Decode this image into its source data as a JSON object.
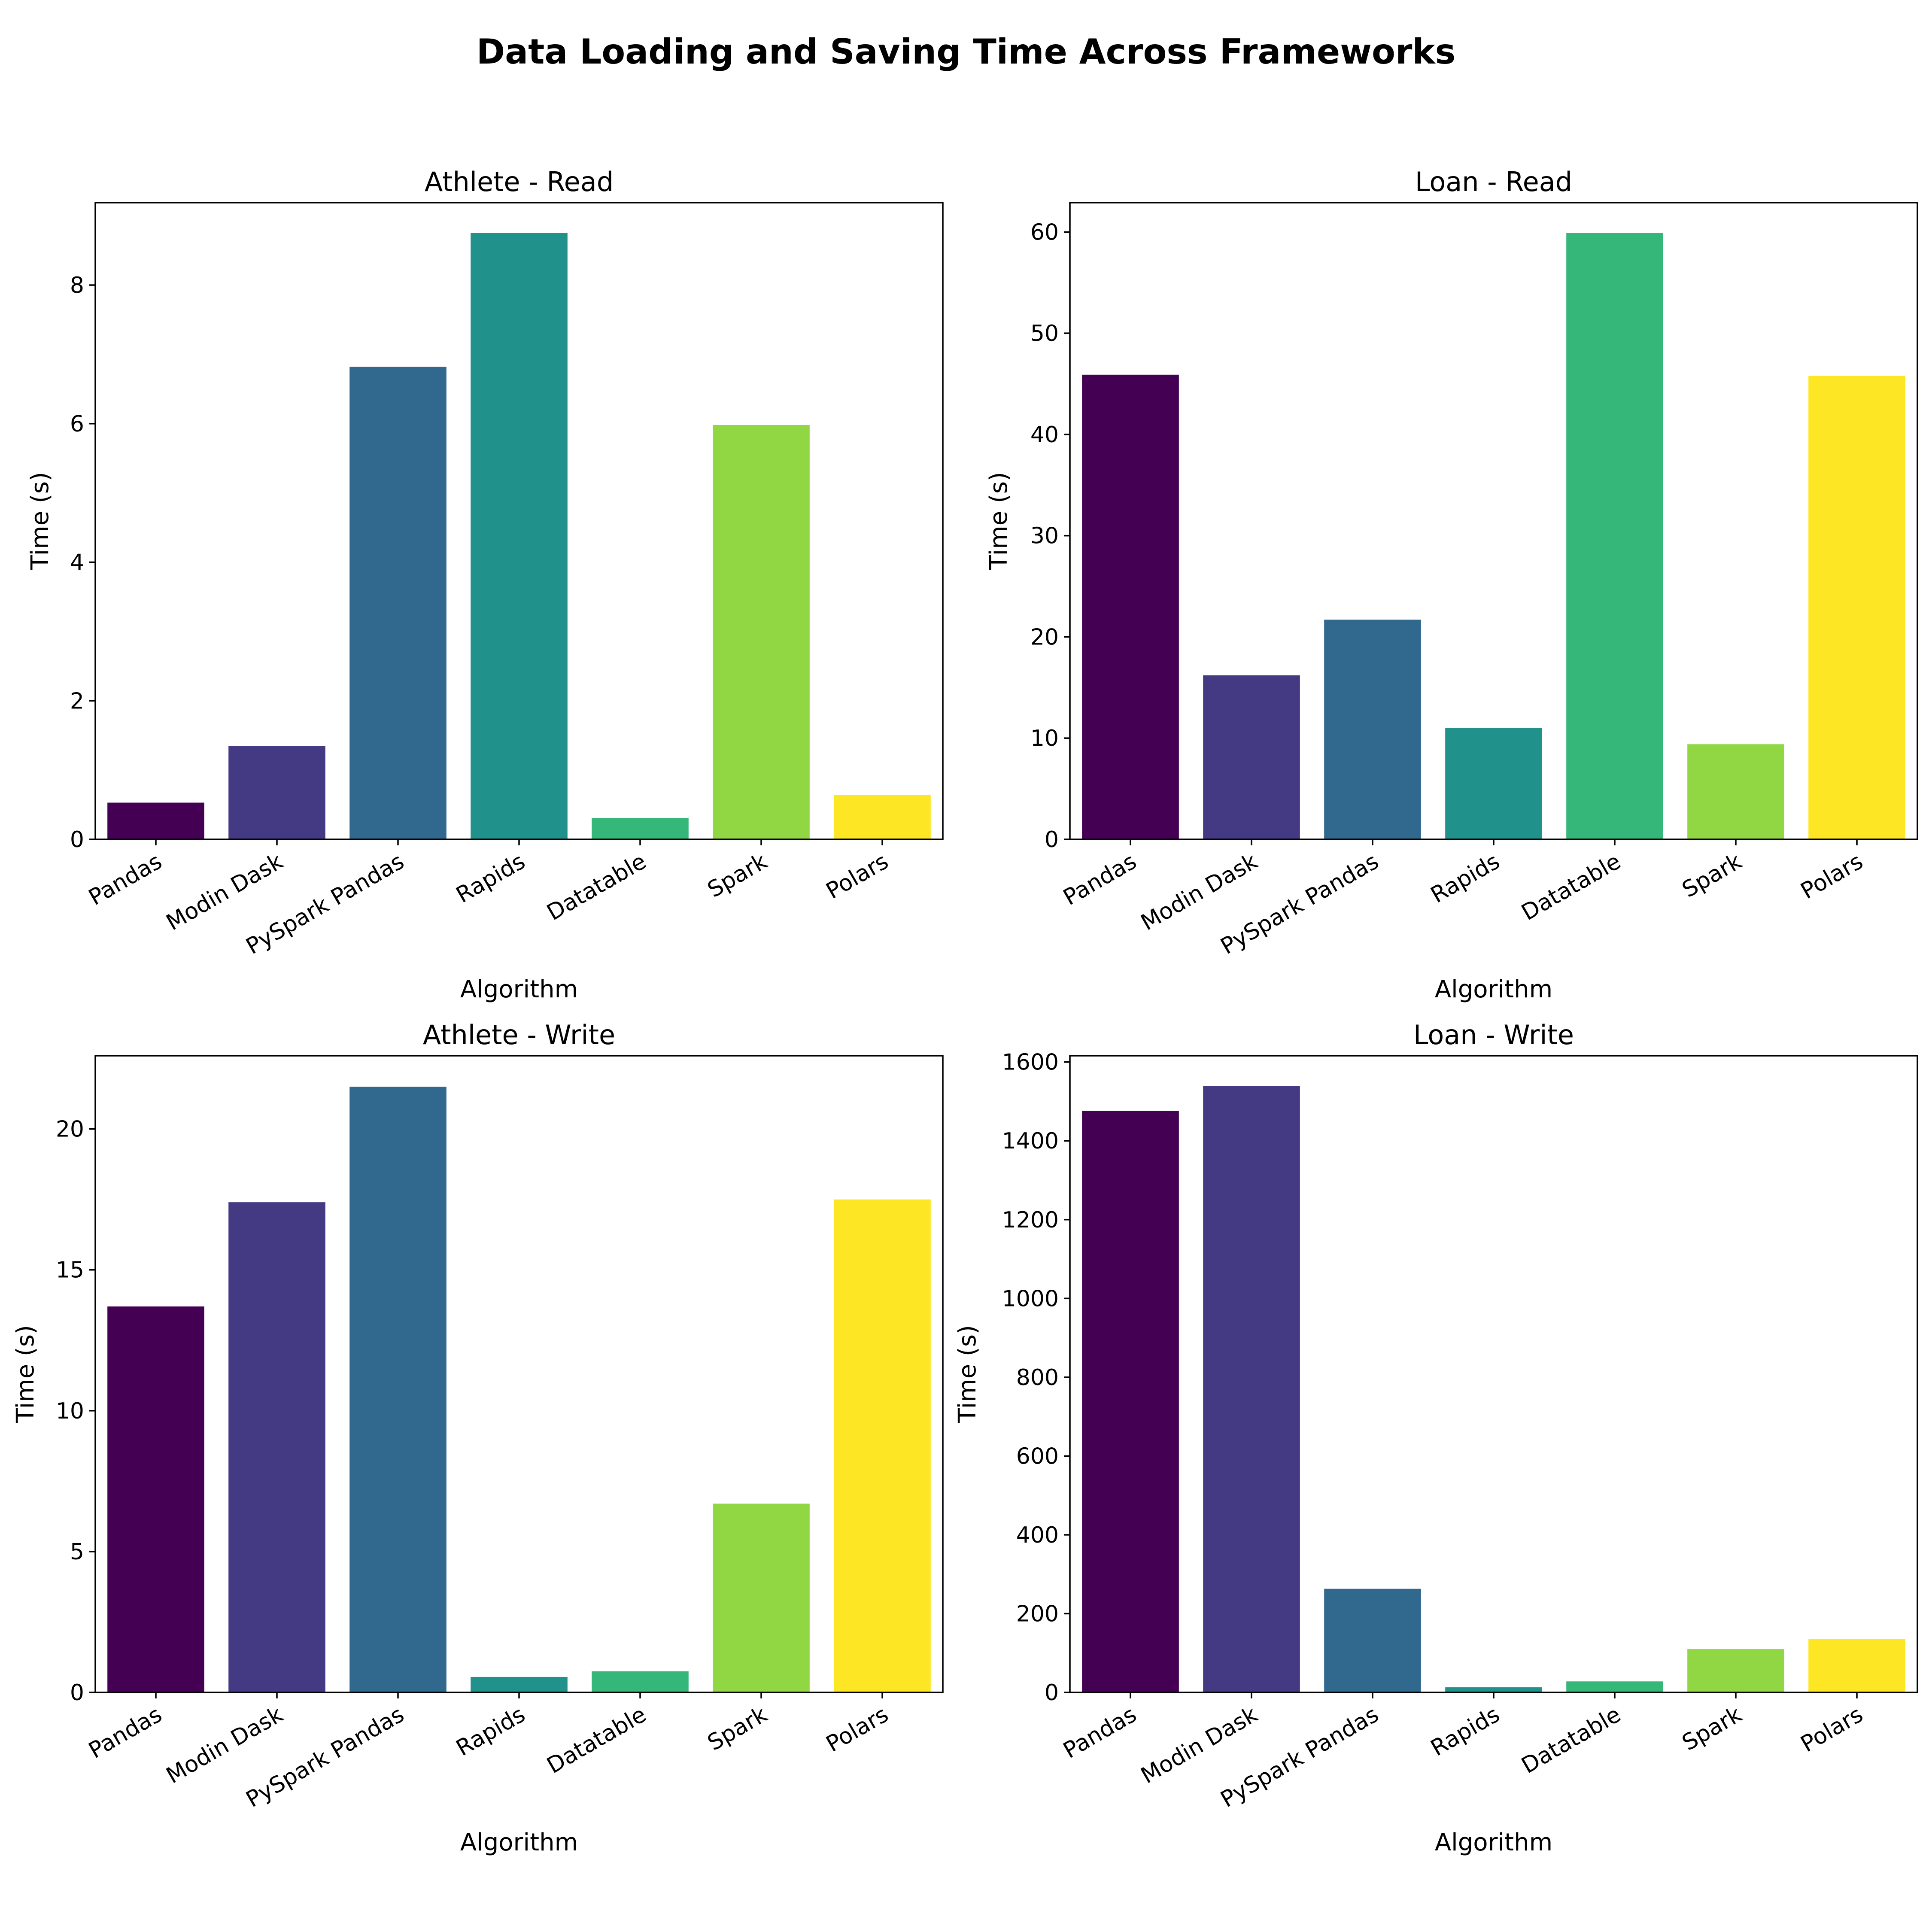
{
  "figure": {
    "title": "Data Loading and Saving Time Across Frameworks",
    "background": "#ffffff"
  },
  "chart_data": [
    {
      "type": "bar",
      "title": "Athlete - Read",
      "xlabel": "Algorithm",
      "ylabel": "Time (s)",
      "categories": [
        "Pandas",
        "Modin Dask",
        "PySpark Pandas",
        "Rapids",
        "Datatable",
        "Spark",
        "Polars"
      ],
      "values": [
        0.53,
        1.35,
        6.82,
        8.75,
        0.31,
        5.98,
        0.64
      ],
      "colors": [
        "#440154",
        "#443983",
        "#31688e",
        "#21918c",
        "#35b779",
        "#90d743",
        "#fde725"
      ],
      "ylim": [
        0,
        9.19
      ],
      "yticks": [
        0,
        2,
        4,
        6,
        8
      ],
      "grid": false
    },
    {
      "type": "bar",
      "title": "Loan - Read",
      "xlabel": "Algorithm",
      "ylabel": "Time (s)",
      "categories": [
        "Pandas",
        "Modin Dask",
        "PySpark Pandas",
        "Rapids",
        "Datatable",
        "Spark",
        "Polars"
      ],
      "values": [
        45.9,
        16.2,
        21.7,
        11.0,
        59.9,
        9.4,
        45.8
      ],
      "colors": [
        "#440154",
        "#443983",
        "#31688e",
        "#21918c",
        "#35b779",
        "#90d743",
        "#fde725"
      ],
      "ylim": [
        0,
        62.9
      ],
      "yticks": [
        0,
        10,
        20,
        30,
        40,
        50,
        60
      ],
      "grid": false
    },
    {
      "type": "bar",
      "title": "Athlete - Write",
      "xlabel": "Algorithm",
      "ylabel": "Time (s)",
      "categories": [
        "Pandas",
        "Modin Dask",
        "PySpark Pandas",
        "Rapids",
        "Datatable",
        "Spark",
        "Polars"
      ],
      "values": [
        13.7,
        17.4,
        21.5,
        0.55,
        0.75,
        6.7,
        17.5
      ],
      "colors": [
        "#440154",
        "#443983",
        "#31688e",
        "#21918c",
        "#35b779",
        "#90d743",
        "#fde725"
      ],
      "ylim": [
        0,
        22.6
      ],
      "yticks": [
        0,
        5,
        10,
        15,
        20
      ],
      "grid": false
    },
    {
      "type": "bar",
      "title": "Loan - Write",
      "xlabel": "Algorithm",
      "ylabel": "Time (s)",
      "categories": [
        "Pandas",
        "Modin Dask",
        "PySpark Pandas",
        "Rapids",
        "Datatable",
        "Spark",
        "Polars"
      ],
      "values": [
        1476,
        1539,
        263,
        13,
        28,
        110,
        136
      ],
      "colors": [
        "#440154",
        "#443983",
        "#31688e",
        "#21918c",
        "#35b779",
        "#90d743",
        "#fde725"
      ],
      "ylim": [
        0,
        1616
      ],
      "yticks": [
        0,
        200,
        400,
        600,
        800,
        1000,
        1200,
        1400,
        1600
      ],
      "grid": false
    }
  ]
}
